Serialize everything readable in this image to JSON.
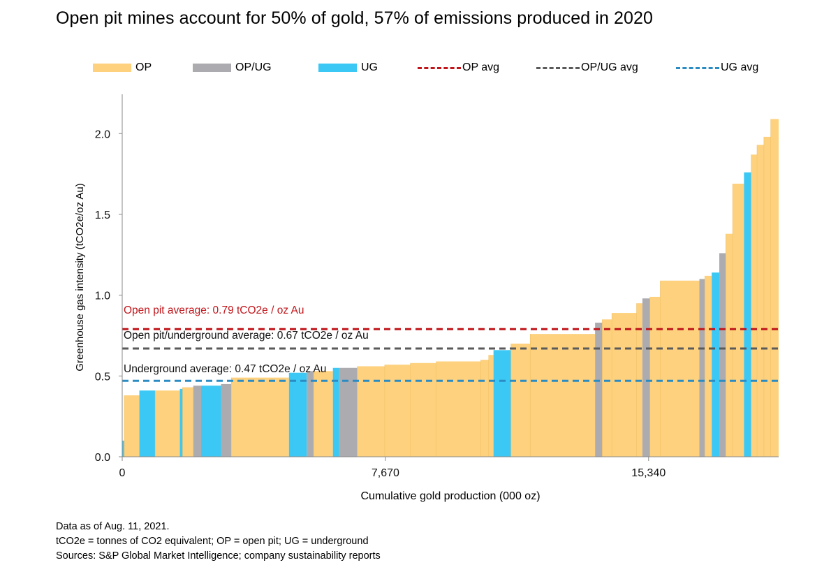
{
  "title": "Open pit mines account for 50% of gold, 57% of emissions produced in 2020",
  "legend": {
    "op": "OP",
    "opug": "OP/UG",
    "ug": "UG",
    "op_avg": "OP avg",
    "opug_avg": "OP/UG avg",
    "ug_avg": "UG avg"
  },
  "colors": {
    "OP": "#fdd17d",
    "OPUG": "#acacb0",
    "UG": "#3cc8f4",
    "op_avg": "#c0161b",
    "opug_avg": "#5a5a5a",
    "ug_avg": "#2b8cc4"
  },
  "chart_data": {
    "type": "bar",
    "variant": "variable-width step bars (cost-curve style)",
    "title": "Open pit mines account for 50% of gold, 57% of emissions produced in 2020",
    "xlabel": "Cumulative gold production (000 oz)",
    "ylabel": "Greenhouse gas intensity (tCO2e/oz Au)",
    "xlim": [
      0,
      19130
    ],
    "ylim": [
      0,
      2.2
    ],
    "x_ticks": [
      {
        "value": 0,
        "label": "0"
      },
      {
        "value": 7670,
        "label": "7,670"
      },
      {
        "value": 15340,
        "label": "15,340"
      }
    ],
    "y_ticks": [
      {
        "value": 0,
        "label": "0.0"
      },
      {
        "value": 0.5,
        "label": "0.5"
      },
      {
        "value": 1,
        "label": "1.0"
      },
      {
        "value": 1.5,
        "label": "1.5"
      },
      {
        "value": 2,
        "label": "2.0"
      }
    ],
    "averages": [
      {
        "key": "op_avg",
        "value": 0.79,
        "label": "Open pit average: 0.79 tCO2e / oz Au"
      },
      {
        "key": "opug_avg",
        "value": 0.67,
        "label": "Open pit/underground average: 0.67 tCO2e / oz Au"
      },
      {
        "key": "ug_avg",
        "value": 0.47,
        "label": "Underground average: 0.47 tCO2e / oz Au"
      }
    ],
    "series_types": [
      "OP",
      "OP/UG",
      "UG"
    ],
    "bars": [
      {
        "type": "UG",
        "x0": 0,
        "x1": 60,
        "value": 0.1
      },
      {
        "type": "OP",
        "x0": 60,
        "x1": 500,
        "value": 0.38
      },
      {
        "type": "UG",
        "x0": 500,
        "x1": 960,
        "value": 0.41
      },
      {
        "type": "OP",
        "x0": 960,
        "x1": 1680,
        "value": 0.41
      },
      {
        "type": "UG",
        "x0": 1680,
        "x1": 1760,
        "value": 0.42
      },
      {
        "type": "OP",
        "x0": 1760,
        "x1": 2070,
        "value": 0.43
      },
      {
        "type": "OPUG",
        "x0": 2070,
        "x1": 2300,
        "value": 0.44
      },
      {
        "type": "UG",
        "x0": 2300,
        "x1": 2880,
        "value": 0.44
      },
      {
        "type": "OPUG",
        "x0": 2880,
        "x1": 3180,
        "value": 0.45
      },
      {
        "type": "OP",
        "x0": 3180,
        "x1": 4860,
        "value": 0.49
      },
      {
        "type": "UG",
        "x0": 4860,
        "x1": 5380,
        "value": 0.52
      },
      {
        "type": "OPUG",
        "x0": 5380,
        "x1": 5580,
        "value": 0.53
      },
      {
        "type": "OP",
        "x0": 5580,
        "x1": 6140,
        "value": 0.53
      },
      {
        "type": "UG",
        "x0": 6140,
        "x1": 6320,
        "value": 0.55
      },
      {
        "type": "OPUG",
        "x0": 6320,
        "x1": 6850,
        "value": 0.55
      },
      {
        "type": "OP",
        "x0": 6850,
        "x1": 7650,
        "value": 0.56
      },
      {
        "type": "OP",
        "x0": 7650,
        "x1": 8400,
        "value": 0.57
      },
      {
        "type": "OP",
        "x0": 8400,
        "x1": 9150,
        "value": 0.58
      },
      {
        "type": "OP",
        "x0": 9150,
        "x1": 10450,
        "value": 0.59
      },
      {
        "type": "OP",
        "x0": 10450,
        "x1": 10680,
        "value": 0.6
      },
      {
        "type": "OP",
        "x0": 10680,
        "x1": 10820,
        "value": 0.63
      },
      {
        "type": "UG",
        "x0": 10820,
        "x1": 11330,
        "value": 0.66
      },
      {
        "type": "OP",
        "x0": 11330,
        "x1": 11890,
        "value": 0.7
      },
      {
        "type": "OP",
        "x0": 11890,
        "x1": 13780,
        "value": 0.76
      },
      {
        "type": "OPUG",
        "x0": 13780,
        "x1": 13990,
        "value": 0.83
      },
      {
        "type": "OP",
        "x0": 13990,
        "x1": 14270,
        "value": 0.85
      },
      {
        "type": "OP",
        "x0": 14270,
        "x1": 14990,
        "value": 0.89
      },
      {
        "type": "OP",
        "x0": 14990,
        "x1": 15160,
        "value": 0.95
      },
      {
        "type": "OPUG",
        "x0": 15160,
        "x1": 15380,
        "value": 0.98
      },
      {
        "type": "OP",
        "x0": 15380,
        "x1": 15680,
        "value": 0.99
      },
      {
        "type": "OP",
        "x0": 15680,
        "x1": 16820,
        "value": 1.09
      },
      {
        "type": "OPUG",
        "x0": 16820,
        "x1": 16980,
        "value": 1.1
      },
      {
        "type": "OP",
        "x0": 16980,
        "x1": 17180,
        "value": 1.12
      },
      {
        "type": "UG",
        "x0": 17180,
        "x1": 17400,
        "value": 1.14
      },
      {
        "type": "OPUG",
        "x0": 17400,
        "x1": 17590,
        "value": 1.26
      },
      {
        "type": "OP",
        "x0": 17590,
        "x1": 17790,
        "value": 1.38
      },
      {
        "type": "OP",
        "x0": 17790,
        "x1": 18120,
        "value": 1.69
      },
      {
        "type": "UG",
        "x0": 18120,
        "x1": 18330,
        "value": 1.76
      },
      {
        "type": "OP",
        "x0": 18330,
        "x1": 18500,
        "value": 1.87
      },
      {
        "type": "OP",
        "x0": 18500,
        "x1": 18700,
        "value": 1.93
      },
      {
        "type": "OP",
        "x0": 18700,
        "x1": 18900,
        "value": 1.98
      },
      {
        "type": "OP",
        "x0": 18900,
        "x1": 19130,
        "value": 2.09
      }
    ]
  },
  "notes": {
    "line1": "Data as of Aug. 11, 2021.",
    "line2": "tCO2e = tonnes of CO2 equivalent; OP = open pit; UG = underground",
    "line3": "Sources: S&P Global Market Intelligence; company sustainability reports"
  }
}
